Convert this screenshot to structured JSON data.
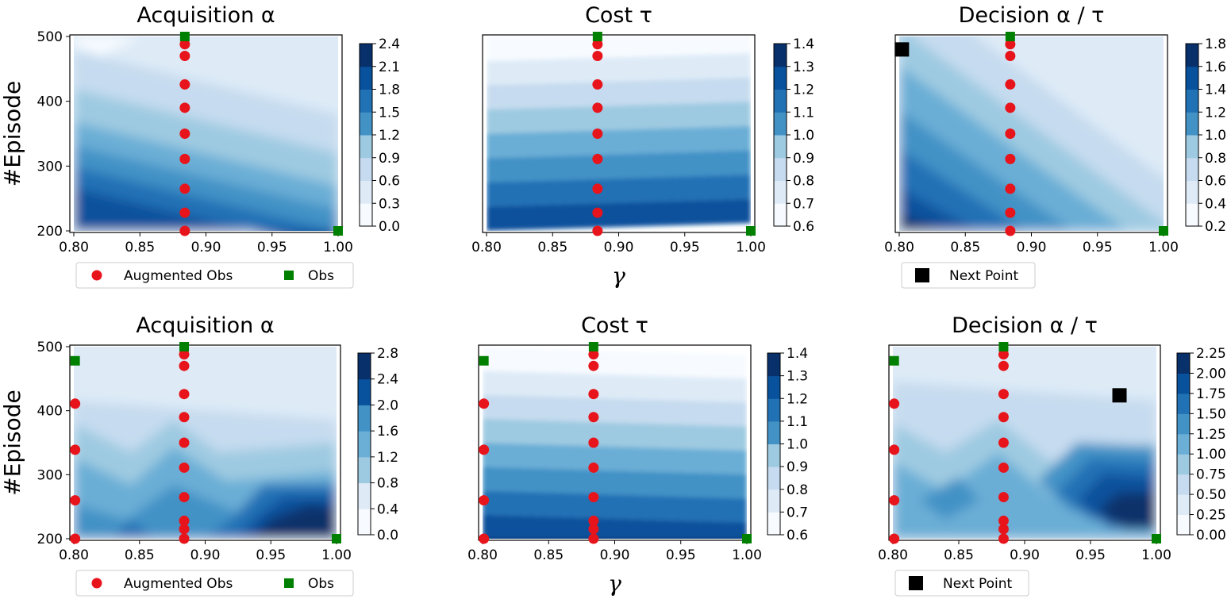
{
  "chart_data": [
    {
      "type": "contour",
      "title": "Acquisition α",
      "ylabel": "#Episode",
      "xlabel": "",
      "xlim": [
        0.8,
        1.0
      ],
      "ylim": [
        200,
        500
      ],
      "xticks": [
        "0.80",
        "0.85",
        "0.90",
        "0.95",
        "1.00"
      ],
      "yticks": [
        "200",
        "300",
        "400",
        "500"
      ],
      "colorbar": {
        "min": 0.0,
        "max": 2.4,
        "ticks": [
          "0.0",
          "0.3",
          "0.6",
          "0.9",
          "1.2",
          "1.5",
          "1.8",
          "2.1",
          "2.4"
        ]
      },
      "obs": [
        {
          "x": 0.884,
          "y": 500
        },
        {
          "x": 1.0,
          "y": 200
        }
      ],
      "augmented_obs": [
        {
          "x": 0.884,
          "y": 488
        },
        {
          "x": 0.884,
          "y": 470
        },
        {
          "x": 0.884,
          "y": 426
        },
        {
          "x": 0.884,
          "y": 390
        },
        {
          "x": 0.884,
          "y": 350
        },
        {
          "x": 0.884,
          "y": 311
        },
        {
          "x": 0.884,
          "y": 265
        },
        {
          "x": 0.884,
          "y": 228
        },
        {
          "x": 0.884,
          "y": 200
        }
      ],
      "legend": [
        "Augmented Obs",
        "Obs"
      ]
    },
    {
      "type": "contour",
      "title": "Cost τ",
      "ylabel": "",
      "xlabel": "γ",
      "xlim": [
        0.8,
        1.0
      ],
      "ylim": [
        200,
        500
      ],
      "xticks": [
        "0.80",
        "0.85",
        "0.90",
        "0.95",
        "1.00"
      ],
      "yticks": [],
      "colorbar": {
        "min": 0.6,
        "max": 1.4,
        "ticks": [
          "0.6",
          "0.7",
          "0.8",
          "0.9",
          "1.0",
          "1.1",
          "1.2",
          "1.3",
          "1.4"
        ]
      },
      "obs": [
        {
          "x": 0.884,
          "y": 500
        },
        {
          "x": 1.0,
          "y": 200
        }
      ],
      "augmented_obs": [
        {
          "x": 0.884,
          "y": 488
        },
        {
          "x": 0.884,
          "y": 470
        },
        {
          "x": 0.884,
          "y": 426
        },
        {
          "x": 0.884,
          "y": 390
        },
        {
          "x": 0.884,
          "y": 350
        },
        {
          "x": 0.884,
          "y": 311
        },
        {
          "x": 0.884,
          "y": 265
        },
        {
          "x": 0.884,
          "y": 228
        },
        {
          "x": 0.884,
          "y": 200
        }
      ]
    },
    {
      "type": "contour",
      "title": "Decision α / τ",
      "ylabel": "",
      "xlabel": "",
      "xlim": [
        0.8,
        1.0
      ],
      "ylim": [
        200,
        500
      ],
      "xticks": [
        "0.80",
        "0.85",
        "0.90",
        "0.95",
        "1.00"
      ],
      "yticks": [],
      "colorbar": {
        "min": 0.2,
        "max": 1.8,
        "ticks": [
          "0.2",
          "0.4",
          "0.6",
          "0.8",
          "1.0",
          "1.2",
          "1.4",
          "1.6",
          "1.8"
        ]
      },
      "obs": [
        {
          "x": 0.884,
          "y": 500
        },
        {
          "x": 1.0,
          "y": 200
        }
      ],
      "augmented_obs": [
        {
          "x": 0.884,
          "y": 488
        },
        {
          "x": 0.884,
          "y": 470
        },
        {
          "x": 0.884,
          "y": 426
        },
        {
          "x": 0.884,
          "y": 390
        },
        {
          "x": 0.884,
          "y": 350
        },
        {
          "x": 0.884,
          "y": 311
        },
        {
          "x": 0.884,
          "y": 265
        },
        {
          "x": 0.884,
          "y": 228
        },
        {
          "x": 0.884,
          "y": 200
        }
      ],
      "next_point": {
        "x": 0.802,
        "y": 480
      },
      "legend": [
        "Next Point"
      ]
    },
    {
      "type": "contour",
      "title": "Acquisition α",
      "ylabel": "#Episode",
      "xlabel": "",
      "xlim": [
        0.8,
        1.0
      ],
      "ylim": [
        200,
        500
      ],
      "xticks": [
        "0.80",
        "0.85",
        "0.90",
        "0.95",
        "1.00"
      ],
      "yticks": [
        "200",
        "300",
        "400",
        "500"
      ],
      "colorbar": {
        "min": 0.0,
        "max": 2.8,
        "ticks": [
          "0.0",
          "0.4",
          "0.8",
          "1.2",
          "1.6",
          "2.0",
          "2.4",
          "2.8"
        ]
      },
      "obs": [
        {
          "x": 0.884,
          "y": 500
        },
        {
          "x": 0.801,
          "y": 478
        },
        {
          "x": 1.0,
          "y": 200
        }
      ],
      "augmented_obs": [
        {
          "x": 0.884,
          "y": 488
        },
        {
          "x": 0.884,
          "y": 470
        },
        {
          "x": 0.884,
          "y": 426
        },
        {
          "x": 0.884,
          "y": 390
        },
        {
          "x": 0.884,
          "y": 350
        },
        {
          "x": 0.884,
          "y": 311
        },
        {
          "x": 0.884,
          "y": 265
        },
        {
          "x": 0.884,
          "y": 228
        },
        {
          "x": 0.884,
          "y": 215
        },
        {
          "x": 0.884,
          "y": 200
        },
        {
          "x": 0.801,
          "y": 411
        },
        {
          "x": 0.801,
          "y": 339
        },
        {
          "x": 0.801,
          "y": 260
        },
        {
          "x": 0.801,
          "y": 200
        }
      ],
      "legend": [
        "Augmented Obs",
        "Obs"
      ]
    },
    {
      "type": "contour",
      "title": "Cost τ",
      "ylabel": "",
      "xlabel": "γ",
      "xlim": [
        0.8,
        1.0
      ],
      "ylim": [
        200,
        500
      ],
      "xticks": [
        "0.80",
        "0.85",
        "0.90",
        "0.95",
        "1.00"
      ],
      "yticks": [],
      "colorbar": {
        "min": 0.6,
        "max": 1.4,
        "ticks": [
          "0.6",
          "0.7",
          "0.8",
          "0.9",
          "1.0",
          "1.1",
          "1.2",
          "1.3",
          "1.4"
        ]
      },
      "obs": [
        {
          "x": 0.884,
          "y": 500
        },
        {
          "x": 0.801,
          "y": 478
        },
        {
          "x": 1.0,
          "y": 200
        }
      ],
      "augmented_obs": [
        {
          "x": 0.884,
          "y": 488
        },
        {
          "x": 0.884,
          "y": 470
        },
        {
          "x": 0.884,
          "y": 426
        },
        {
          "x": 0.884,
          "y": 390
        },
        {
          "x": 0.884,
          "y": 350
        },
        {
          "x": 0.884,
          "y": 311
        },
        {
          "x": 0.884,
          "y": 265
        },
        {
          "x": 0.884,
          "y": 228
        },
        {
          "x": 0.884,
          "y": 215
        },
        {
          "x": 0.884,
          "y": 200
        },
        {
          "x": 0.801,
          "y": 411
        },
        {
          "x": 0.801,
          "y": 339
        },
        {
          "x": 0.801,
          "y": 260
        },
        {
          "x": 0.801,
          "y": 200
        }
      ]
    },
    {
      "type": "contour",
      "title": "Decision α / τ",
      "ylabel": "",
      "xlabel": "",
      "xlim": [
        0.8,
        1.0
      ],
      "ylim": [
        200,
        500
      ],
      "xticks": [
        "0.80",
        "0.85",
        "0.90",
        "0.95",
        "1.00"
      ],
      "yticks": [],
      "colorbar": {
        "min": 0.0,
        "max": 2.25,
        "ticks": [
          "0.00",
          "0.25",
          "0.50",
          "0.75",
          "1.00",
          "1.25",
          "1.50",
          "1.75",
          "2.00",
          "2.25"
        ]
      },
      "obs": [
        {
          "x": 0.884,
          "y": 500
        },
        {
          "x": 0.801,
          "y": 478
        },
        {
          "x": 1.0,
          "y": 200
        }
      ],
      "augmented_obs": [
        {
          "x": 0.884,
          "y": 488
        },
        {
          "x": 0.884,
          "y": 470
        },
        {
          "x": 0.884,
          "y": 426
        },
        {
          "x": 0.884,
          "y": 390
        },
        {
          "x": 0.884,
          "y": 350
        },
        {
          "x": 0.884,
          "y": 311
        },
        {
          "x": 0.884,
          "y": 265
        },
        {
          "x": 0.884,
          "y": 228
        },
        {
          "x": 0.884,
          "y": 215
        },
        {
          "x": 0.884,
          "y": 200
        },
        {
          "x": 0.801,
          "y": 411
        },
        {
          "x": 0.801,
          "y": 339
        },
        {
          "x": 0.801,
          "y": 260
        },
        {
          "x": 0.801,
          "y": 200
        }
      ],
      "next_point": {
        "x": 0.972,
        "y": 424
      },
      "legend": [
        "Next Point"
      ]
    }
  ],
  "colors": {
    "obs": "#008000",
    "augmented_obs": "#e8141b",
    "next_point": "#000000",
    "palette": [
      "#f7fbff",
      "#deebf7",
      "#c6dbef",
      "#9ecae1",
      "#6baed6",
      "#4292c6",
      "#2171b5",
      "#08519c",
      "#08306b"
    ]
  }
}
